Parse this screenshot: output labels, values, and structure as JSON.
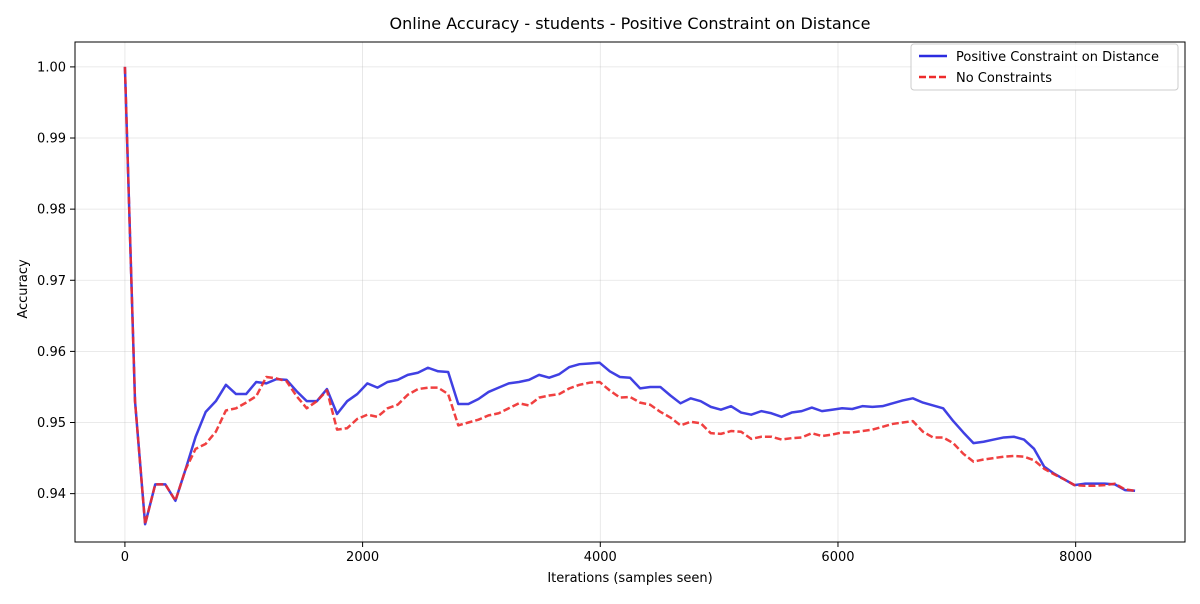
{
  "chart_data": {
    "type": "line",
    "title": "Online Accuracy - students - Positive Constraint on Distance",
    "xlabel": "Iterations (samples seen)",
    "ylabel": "Accuracy",
    "xlim": [
      -420,
      8920
    ],
    "ylim": [
      0.9332,
      1.0035
    ],
    "xticks": [
      0,
      2000,
      4000,
      6000,
      8000
    ],
    "xtick_labels": [
      "0",
      "2000",
      "4000",
      "6000",
      "8000"
    ],
    "yticks": [
      0.94,
      0.95,
      0.96,
      0.97,
      0.98,
      0.99,
      1.0
    ],
    "ytick_labels": [
      "0.94",
      "0.95",
      "0.96",
      "0.97",
      "0.98",
      "0.99",
      "1.00"
    ],
    "grid": true,
    "legend_position": "top-right",
    "series": [
      {
        "name": "Positive Constraint on Distance",
        "color": "#2b2be0",
        "line_style": "solid",
        "x": [
          0,
          85,
          170,
          255,
          340,
          425,
          510,
          595,
          680,
          765,
          850,
          935,
          1020,
          1105,
          1190,
          1275,
          1360,
          1445,
          1530,
          1615,
          1700,
          1785,
          1870,
          1955,
          2040,
          2125,
          2210,
          2295,
          2380,
          2465,
          2550,
          2635,
          2720,
          2805,
          2890,
          2975,
          3060,
          3145,
          3230,
          3315,
          3400,
          3485,
          3570,
          3655,
          3740,
          3825,
          3910,
          3995,
          4080,
          4165,
          4250,
          4335,
          4420,
          4505,
          4590,
          4675,
          4760,
          4845,
          4930,
          5015,
          5100,
          5185,
          5270,
          5355,
          5440,
          5525,
          5610,
          5695,
          5780,
          5865,
          5950,
          6035,
          6120,
          6205,
          6290,
          6375,
          6460,
          6545,
          6630,
          6715,
          6800,
          6885,
          6970,
          7055,
          7140,
          7225,
          7310,
          7395,
          7480,
          7565,
          7650,
          7735,
          7820,
          7905,
          7990,
          8075,
          8160,
          8245,
          8330,
          8415,
          8500
        ],
        "values": [
          1.0,
          0.953,
          0.9357,
          0.9413,
          0.9413,
          0.939,
          0.9434,
          0.948,
          0.9515,
          0.953,
          0.9553,
          0.954,
          0.954,
          0.9557,
          0.9555,
          0.9561,
          0.956,
          0.9544,
          0.953,
          0.953,
          0.9547,
          0.9512,
          0.953,
          0.954,
          0.9555,
          0.9549,
          0.9557,
          0.956,
          0.9567,
          0.957,
          0.9577,
          0.9572,
          0.9571,
          0.9526,
          0.9526,
          0.9533,
          0.9543,
          0.9549,
          0.9555,
          0.9557,
          0.956,
          0.9567,
          0.9563,
          0.9568,
          0.9578,
          0.9582,
          0.9583,
          0.9584,
          0.9572,
          0.9564,
          0.9563,
          0.9548,
          0.955,
          0.955,
          0.9538,
          0.9527,
          0.9534,
          0.953,
          0.9522,
          0.9518,
          0.9523,
          0.9514,
          0.9511,
          0.9516,
          0.9513,
          0.9508,
          0.9514,
          0.9516,
          0.9521,
          0.9516,
          0.9518,
          0.952,
          0.9519,
          0.9523,
          0.9522,
          0.9523,
          0.9527,
          0.9531,
          0.9534,
          0.9528,
          0.9524,
          0.952,
          0.9502,
          0.9486,
          0.9471,
          0.9473,
          0.9476,
          0.9479,
          0.948,
          0.9476,
          0.9463,
          0.9438,
          0.9428,
          0.942,
          0.9412,
          0.9414,
          0.9414,
          0.9414,
          0.9413,
          0.9405,
          0.9404
        ]
      },
      {
        "name": "No Constraints",
        "color": "#ee2b2b",
        "line_style": "dashed",
        "x": [
          0,
          85,
          170,
          255,
          340,
          425,
          510,
          595,
          680,
          765,
          850,
          935,
          1020,
          1105,
          1190,
          1275,
          1360,
          1445,
          1530,
          1615,
          1700,
          1785,
          1870,
          1955,
          2040,
          2125,
          2210,
          2295,
          2380,
          2465,
          2550,
          2635,
          2720,
          2805,
          2890,
          2975,
          3060,
          3145,
          3230,
          3315,
          3400,
          3485,
          3570,
          3655,
          3740,
          3825,
          3910,
          3995,
          4080,
          4165,
          4250,
          4335,
          4420,
          4505,
          4590,
          4675,
          4760,
          4845,
          4930,
          5015,
          5100,
          5185,
          5270,
          5355,
          5440,
          5525,
          5610,
          5695,
          5780,
          5865,
          5950,
          6035,
          6120,
          6205,
          6290,
          6375,
          6460,
          6545,
          6630,
          6715,
          6800,
          6885,
          6970,
          7055,
          7140,
          7225,
          7310,
          7395,
          7480,
          7565,
          7650,
          7735,
          7820,
          7905,
          7990,
          8075,
          8160,
          8245,
          8330,
          8415,
          8500
        ],
        "values": [
          1.0,
          0.953,
          0.9357,
          0.9413,
          0.9413,
          0.939,
          0.9434,
          0.9463,
          0.947,
          0.9487,
          0.9517,
          0.952,
          0.9528,
          0.9537,
          0.9564,
          0.9562,
          0.9558,
          0.9537,
          0.952,
          0.953,
          0.9545,
          0.949,
          0.9492,
          0.9505,
          0.9511,
          0.9508,
          0.952,
          0.9525,
          0.9539,
          0.9547,
          0.9549,
          0.9549,
          0.954,
          0.9496,
          0.95,
          0.9504,
          0.951,
          0.9513,
          0.952,
          0.9527,
          0.9524,
          0.9535,
          0.9538,
          0.954,
          0.9548,
          0.9553,
          0.9556,
          0.9557,
          0.9545,
          0.9535,
          0.9536,
          0.9528,
          0.9525,
          0.9515,
          0.9507,
          0.9496,
          0.9501,
          0.9499,
          0.9485,
          0.9484,
          0.9488,
          0.9487,
          0.9477,
          0.948,
          0.948,
          0.9476,
          0.9478,
          0.9479,
          0.9485,
          0.9481,
          0.9483,
          0.9486,
          0.9486,
          0.9488,
          0.949,
          0.9494,
          0.9498,
          0.95,
          0.9502,
          0.9487,
          0.9479,
          0.9479,
          0.9471,
          0.9456,
          0.9445,
          0.9448,
          0.945,
          0.9452,
          0.9453,
          0.9452,
          0.9447,
          0.9435,
          0.9427,
          0.942,
          0.9412,
          0.9411,
          0.9411,
          0.9412,
          0.9414,
          0.9406,
          0.9404
        ]
      }
    ]
  }
}
